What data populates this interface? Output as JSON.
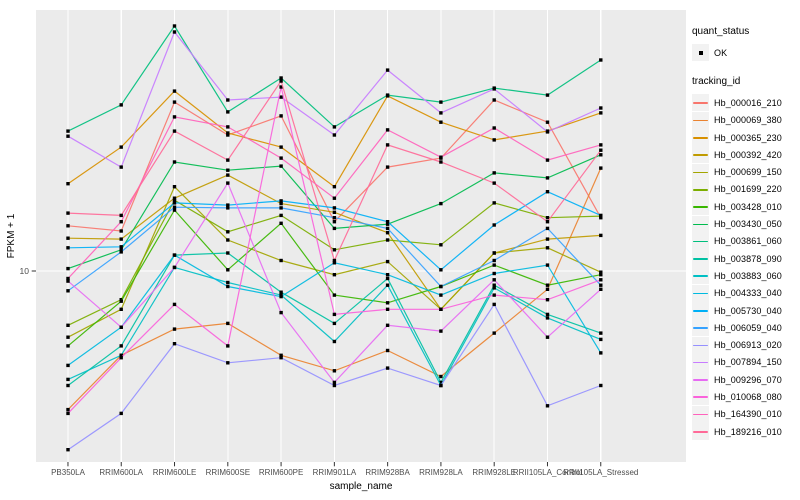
{
  "legend": {
    "quant_status_title": "quant_status",
    "quant_status_items": [
      {
        "label": "OK"
      }
    ],
    "tracking_id_title": "tracking_id"
  },
  "chart_data": {
    "type": "line",
    "title": "",
    "xlabel": "sample_name",
    "ylabel": "FPKM + 1",
    "y_scale": "log10",
    "y_ticks": [
      10
    ],
    "y_tick_labels": [
      "10"
    ],
    "ylim_log": [
      2.0,
      90.0
    ],
    "grid": true,
    "legend_position": "right",
    "panel_color": "#EBEBEB",
    "grid_color": "#FFFFFF",
    "point_marker": "black-square",
    "quant_status": "OK",
    "categories": [
      "PB350LA",
      "RRIM600LA",
      "RRIM600LE",
      "RRIM600SE",
      "RRIM600PE",
      "RRIM901LA",
      "RRIM928BA",
      "RRIM928LA",
      "RRIM928LE",
      "RRII105LA_Control",
      "RRII105LA_Stressed"
    ],
    "series": [
      {
        "name": "Hb_000016_210",
        "color": "#F8766D",
        "values": [
          14.5,
          13.9,
          40.1,
          30.6,
          35.8,
          15.0,
          23.5,
          25.3,
          40.8,
          34.0,
          15.5
        ]
      },
      {
        "name": "Hb_000069_380",
        "color": "#EA8331",
        "values": [
          3.2,
          5.0,
          6.2,
          6.5,
          5.0,
          4.4,
          5.2,
          4.2,
          6.0,
          8.6,
          23.3
        ]
      },
      {
        "name": "Hb_000365_230",
        "color": "#D89000",
        "values": [
          20.5,
          27.7,
          43.9,
          31.1,
          27.7,
          20.0,
          42.2,
          34.0,
          29.4,
          31.6,
          36.7
        ]
      },
      {
        "name": "Hb_000392_420",
        "color": "#C09B00",
        "values": [
          13.1,
          13.0,
          18.2,
          22.0,
          17.4,
          16.2,
          13.7,
          7.3,
          11.6,
          13.0,
          13.4
        ]
      },
      {
        "name": "Hb_000699_150",
        "color": "#A3A500",
        "values": [
          5.8,
          7.3,
          20.0,
          12.9,
          10.9,
          9.7,
          10.8,
          7.3,
          11.6,
          12.1,
          9.9
        ]
      },
      {
        "name": "Hb_001699_220",
        "color": "#7CAE00",
        "values": [
          6.4,
          7.9,
          17.9,
          13.8,
          15.8,
          11.9,
          12.9,
          12.4,
          17.5,
          15.5,
          15.7
        ]
      },
      {
        "name": "Hb_003428_010",
        "color": "#39B600",
        "values": [
          5.4,
          7.8,
          16.5,
          10.1,
          14.8,
          8.2,
          7.7,
          8.8,
          10.5,
          8.9,
          9.7
        ]
      },
      {
        "name": "Hb_003430_050",
        "color": "#00BB4E",
        "values": [
          10.2,
          11.9,
          24.5,
          22.9,
          23.7,
          14.2,
          14.7,
          17.4,
          22.4,
          21.5,
          26.0
        ]
      },
      {
        "name": "Hb_003861_060",
        "color": "#00BF7D",
        "values": [
          31.6,
          39.2,
          75.0,
          37.0,
          48.9,
          32.7,
          42.5,
          40.1,
          45.0,
          42.5,
          56.7
        ]
      },
      {
        "name": "Hb_003878_090",
        "color": "#00C1A3",
        "values": [
          3.9,
          5.4,
          11.4,
          11.6,
          8.4,
          6.5,
          9.4,
          4.0,
          8.9,
          7.0,
          6.0
        ]
      },
      {
        "name": "Hb_003883_060",
        "color": "#00BFC4",
        "values": [
          4.1,
          5.0,
          10.3,
          9.1,
          8.2,
          5.6,
          8.9,
          3.9,
          8.7,
          6.8,
          5.7
        ]
      },
      {
        "name": "Hb_004333_040",
        "color": "#00BAE0",
        "values": [
          4.6,
          6.3,
          11.4,
          8.8,
          8.1,
          10.7,
          9.7,
          8.2,
          9.8,
          10.5,
          5.1
        ]
      },
      {
        "name": "Hb_005730_040",
        "color": "#00B0F6",
        "values": [
          12.1,
          12.2,
          17.5,
          17.2,
          17.8,
          16.8,
          15.0,
          10.1,
          14.6,
          19.2,
          15.8
        ]
      },
      {
        "name": "Hb_006059_040",
        "color": "#35A2FF",
        "values": [
          8.5,
          11.7,
          16.9,
          16.8,
          16.8,
          15.5,
          14.2,
          8.8,
          10.9,
          14.2,
          8.9
        ]
      },
      {
        "name": "Hb_006913_020",
        "color": "#9590FF",
        "values": [
          2.3,
          3.1,
          5.5,
          4.7,
          4.9,
          3.9,
          4.5,
          3.9,
          7.6,
          3.3,
          3.9
        ]
      },
      {
        "name": "Hb_007894_150",
        "color": "#C77CFF",
        "values": [
          30.3,
          23.5,
          71.4,
          40.8,
          41.8,
          30.6,
          52.2,
          36.7,
          44.7,
          31.4,
          38.2
        ]
      },
      {
        "name": "Hb_009296_070",
        "color": "#E76BF3",
        "values": [
          9.2,
          6.3,
          10.3,
          20.6,
          7.1,
          4.0,
          6.4,
          6.1,
          9.3,
          5.8,
          8.6
        ]
      },
      {
        "name": "Hb_010068_080",
        "color": "#FA62DB",
        "values": [
          3.1,
          4.9,
          7.6,
          5.4,
          45.4,
          7.0,
          7.3,
          7.3,
          8.2,
          7.9,
          9.3
        ]
      },
      {
        "name": "Hb_164390_010",
        "color": "#FF62BC",
        "values": [
          9.4,
          15.0,
          35.5,
          32.7,
          25.3,
          18.2,
          31.9,
          25.5,
          32.4,
          24.9,
          28.2
        ]
      },
      {
        "name": "Hb_189216_010",
        "color": "#FF6A98",
        "values": [
          16.1,
          15.8,
          31.6,
          24.9,
          47.7,
          10.9,
          28.2,
          24.5,
          20.6,
          15.0,
          27.0
        ]
      }
    ]
  }
}
